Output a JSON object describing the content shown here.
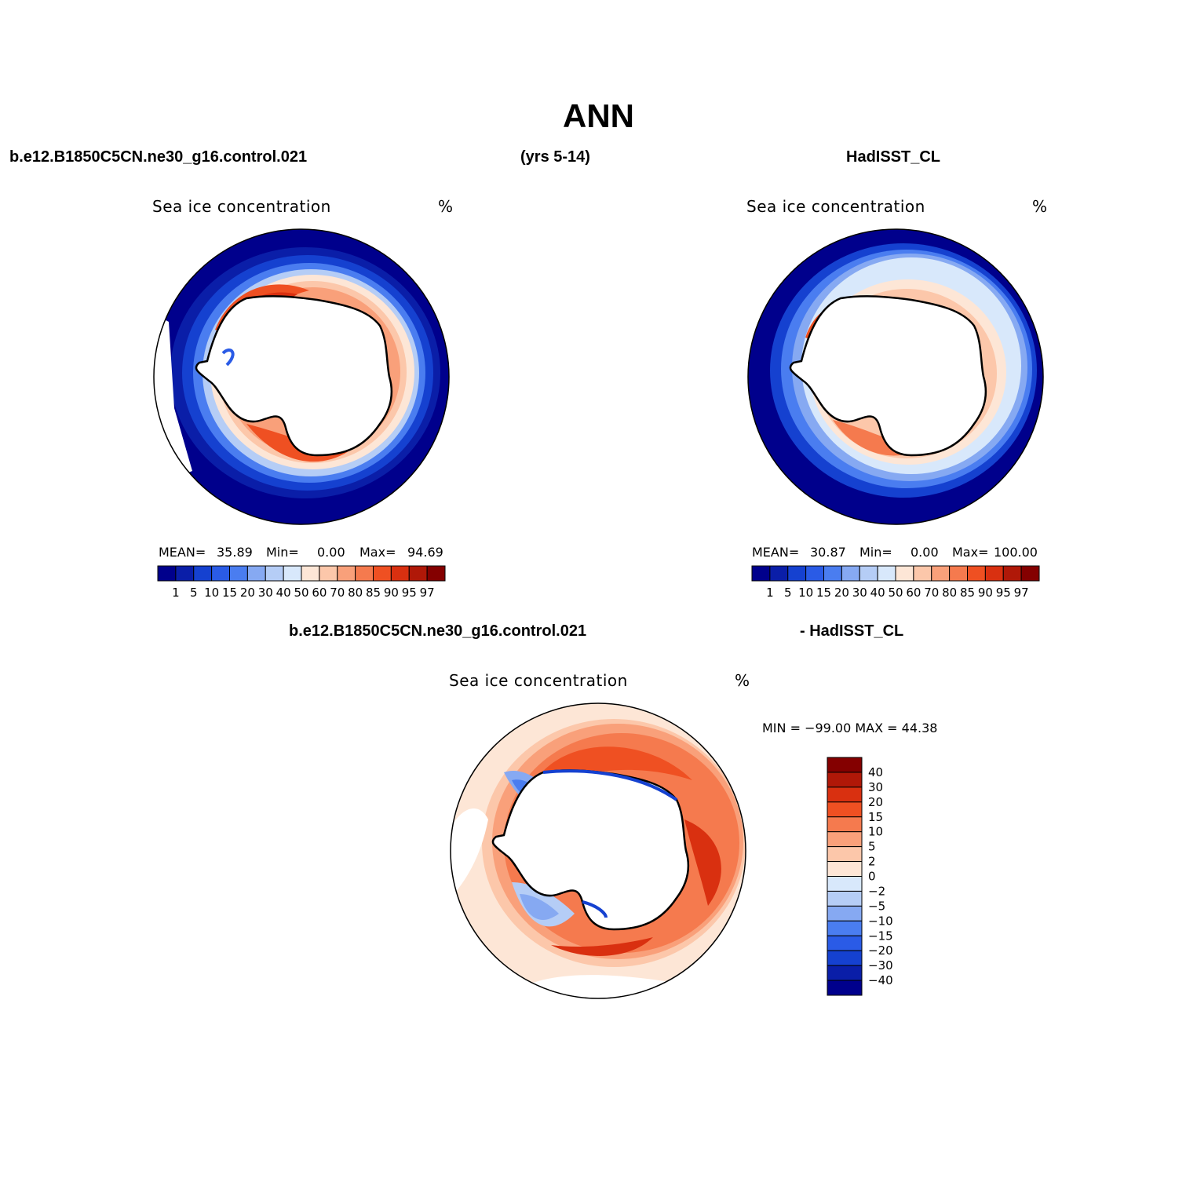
{
  "page": {
    "title": "ANN",
    "case_name": "b.e12.B1850C5CN.ne30_g16.control.021",
    "years": "(yrs 5-14)",
    "obs_name": "HadISST_CL",
    "diff_case_name": "b.e12.B1850C5CN.ne30_g16.control.021",
    "diff_obs_name": "- HadISST_CL"
  },
  "panels": [
    {
      "variable": "Sea ice concentration",
      "units": "%",
      "stats": {
        "mean_label": "MEAN=",
        "mean": "35.89",
        "min_label": "Min=",
        "min": "0.00",
        "max_label": "Max=",
        "max": "94.69"
      }
    },
    {
      "variable": "Sea ice concentration",
      "units": "%",
      "stats": {
        "mean_label": "MEAN=",
        "mean": "30.87",
        "min_label": "Min=",
        "min": "0.00",
        "max_label": "Max=",
        "max": "100.00"
      }
    },
    {
      "variable": "Sea ice concentration",
      "units": "%",
      "stats_text": "MIN = −99.00 MAX =   44.38"
    }
  ],
  "colorbar_abs": {
    "labels": [
      "1",
      "5",
      "10",
      "15",
      "20",
      "30",
      "40",
      "50",
      "60",
      "70",
      "80",
      "85",
      "90",
      "95",
      "97"
    ],
    "colors": [
      "#00008c",
      "#0a1ea8",
      "#1541d0",
      "#2a5be6",
      "#4a7df0",
      "#86a9f2",
      "#b5cdf6",
      "#d8e8fb",
      "#fde6d6",
      "#fcc7aa",
      "#f9a07a",
      "#f57a4e",
      "#ef5022",
      "#d93010",
      "#b01808",
      "#840000"
    ]
  },
  "colorbar_diff": {
    "labels": [
      "40",
      "30",
      "20",
      "15",
      "10",
      "5",
      "2",
      "0",
      "−2",
      "−5",
      "−10",
      "−15",
      "−20",
      "−30",
      "−40"
    ],
    "colors": [
      "#840000",
      "#b01808",
      "#d93010",
      "#ef5022",
      "#f57a4e",
      "#f9a07a",
      "#fcc7aa",
      "#fde6d6",
      "#d8e8fb",
      "#b5cdf6",
      "#86a9f2",
      "#4a7df0",
      "#2a5be6",
      "#1541d0",
      "#0a1ea8",
      "#00008c"
    ]
  }
}
